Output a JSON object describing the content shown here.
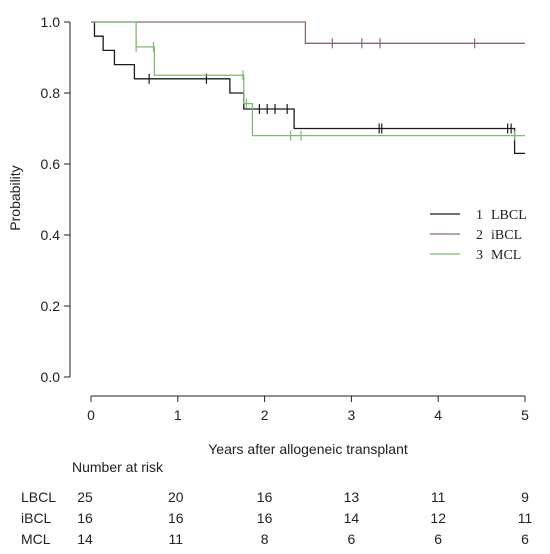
{
  "chart_data": {
    "type": "line",
    "subtype": "kaplan-meier",
    "xlabel": "Years after allogeneic transplant",
    "ylabel": "Probability",
    "xlim": [
      0,
      5
    ],
    "ylim": [
      0,
      1
    ],
    "xticks": [
      0,
      1,
      2,
      3,
      4,
      5
    ],
    "yticks": [
      "0.0",
      "0.2",
      "0.4",
      "0.6",
      "0.8",
      "1.0"
    ],
    "grid": false,
    "legend_position": "right",
    "series": [
      {
        "name": "LBCL",
        "legend_number": "1",
        "color": "#1a1a1a",
        "steps": [
          [
            0,
            1.0
          ],
          [
            0.04,
            0.96
          ],
          [
            0.14,
            0.92
          ],
          [
            0.27,
            0.88
          ],
          [
            0.5,
            0.84
          ],
          [
            1.6,
            0.8
          ],
          [
            1.76,
            0.755
          ],
          [
            2.34,
            0.7
          ],
          [
            4.88,
            0.63
          ],
          [
            5.0,
            0.63
          ]
        ],
        "censored": [
          0.67,
          1.33,
          1.94,
          2.03,
          2.12,
          2.26,
          3.32,
          3.35,
          4.8,
          4.84
        ]
      },
      {
        "name": "iBCL",
        "legend_number": "2",
        "color": "#8a6a78",
        "steps": [
          [
            0,
            1.0
          ],
          [
            2.47,
            0.94
          ],
          [
            5.0,
            0.94
          ]
        ],
        "censored": [
          2.78,
          3.12,
          3.33,
          4.42
        ]
      },
      {
        "name": "MCL",
        "legend_number": "3",
        "color": "#7dbb72",
        "steps": [
          [
            0,
            1.0
          ],
          [
            0.52,
            0.93
          ],
          [
            0.73,
            0.85
          ],
          [
            1.76,
            0.77
          ],
          [
            1.86,
            0.68
          ],
          [
            5.0,
            0.68
          ]
        ],
        "censored": [
          0.52,
          0.72,
          1.75,
          1.79,
          2.3,
          2.42,
          4.88
        ]
      }
    ],
    "risk_table": {
      "title": "Number at risk",
      "rows": [
        {
          "label": "LBCL",
          "values": [
            "25",
            "20",
            "16",
            "13",
            "11",
            "9"
          ]
        },
        {
          "label": "iBCL",
          "values": [
            "16",
            "16",
            "16",
            "14",
            "12",
            "11"
          ]
        },
        {
          "label": "MCL",
          "values": [
            "14",
            "11",
            "8",
            "6",
            "6",
            "6"
          ]
        }
      ]
    }
  }
}
